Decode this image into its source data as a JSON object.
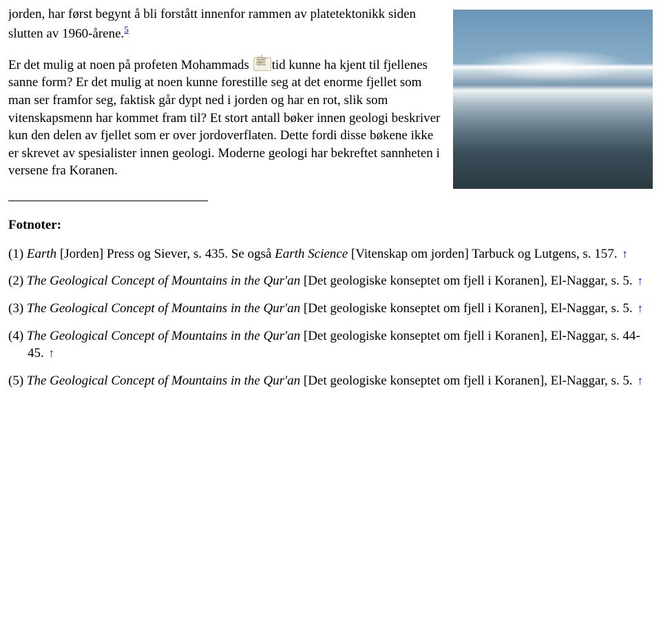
{
  "para1_a": "jorden, har først begynt å bli forstått innenfor rammen av platetektonikk siden slutten av 1960-årene.",
  "sup5": "5",
  "para2_a": "Er det mulig at noen på profeten Mohammads ",
  "para2_b": "tid kunne ha kjent til fjellenes sanne form? Er det mulig at noen kunne forestille seg at det enorme fjellet som man ser framfor seg, faktisk går dypt ned i jorden og har en rot, slik som vitenskapsmenn har kommet fram til? Et stort antall bøker innen geologi beskriver kun den delen av fjellet som er over jordoverflaten. Dette fordi disse bøkene ikke er skrevet av spesialister innen geologi. Moderne geologi har bekreftet sannheten i versene fra Koranen.",
  "footnotes_heading": "Fotnoter:",
  "fn1_a": "(1) ",
  "fn1_it": "Earth",
  "fn1_b": " [Jorden] Press og Siever, s. 435. Se også ",
  "fn1_it2": "Earth Science",
  "fn1_c": " [Vitenskap om jorden] Tarbuck og Lutgens, s. 157. ",
  "fn2_a": "(2) ",
  "fn2_it": "The Geological Concept of Mountains in the Qur'an",
  "fn2_b": " [Det geologiske konseptet om fjell i Koranen], El-Naggar, s. 5. ",
  "fn3_a": "(3) ",
  "fn3_it": "The Geological Concept of Mountains in the Qur'an ",
  "fn3_b": " [Det geologiske konseptet om fjell i Koranen], El-Naggar, s. 5. ",
  "fn4_a": "(4) ",
  "fn4_it": "The Geological Concept of Mountains in the Qur'an",
  "fn4_b": " [Det geologiske konseptet om fjell i Koranen], El-Naggar, s. 44-45. ",
  "fn5_a": "(5) ",
  "fn5_it": "The Geological Concept of Mountains in the Qur'an",
  "fn5_b": " [Det geologiske konseptet om fjell i Koranen], El-Naggar, s. 5. ",
  "arrow": "↑"
}
